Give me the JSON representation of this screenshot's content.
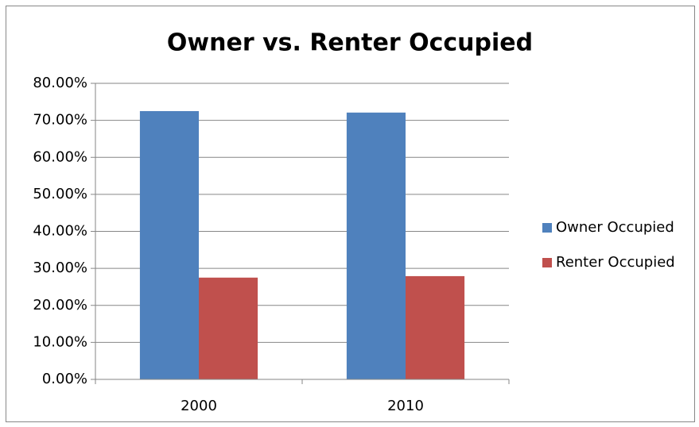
{
  "chart_data": {
    "type": "bar",
    "title": "Owner vs. Renter Occupied",
    "categories": [
      "2000",
      "2010"
    ],
    "series": [
      {
        "name": "Owner Occupied",
        "color": "#4f81bd",
        "values": [
          72.5,
          72.1
        ]
      },
      {
        "name": "Renter Occupied",
        "color": "#c0504d",
        "values": [
          27.5,
          27.9
        ]
      }
    ],
    "ylim": [
      0,
      80
    ],
    "yticks": [
      {
        "value": 0,
        "label": "0.00%"
      },
      {
        "value": 10,
        "label": "10.00%"
      },
      {
        "value": 20,
        "label": "20.00%"
      },
      {
        "value": 30,
        "label": "30.00%"
      },
      {
        "value": 40,
        "label": "40.00%"
      },
      {
        "value": 50,
        "label": "50.00%"
      },
      {
        "value": 60,
        "label": "60.00%"
      },
      {
        "value": 70,
        "label": "70.00%"
      },
      {
        "value": 80,
        "label": "80.00%"
      }
    ],
    "grid": true,
    "legend": "right"
  }
}
